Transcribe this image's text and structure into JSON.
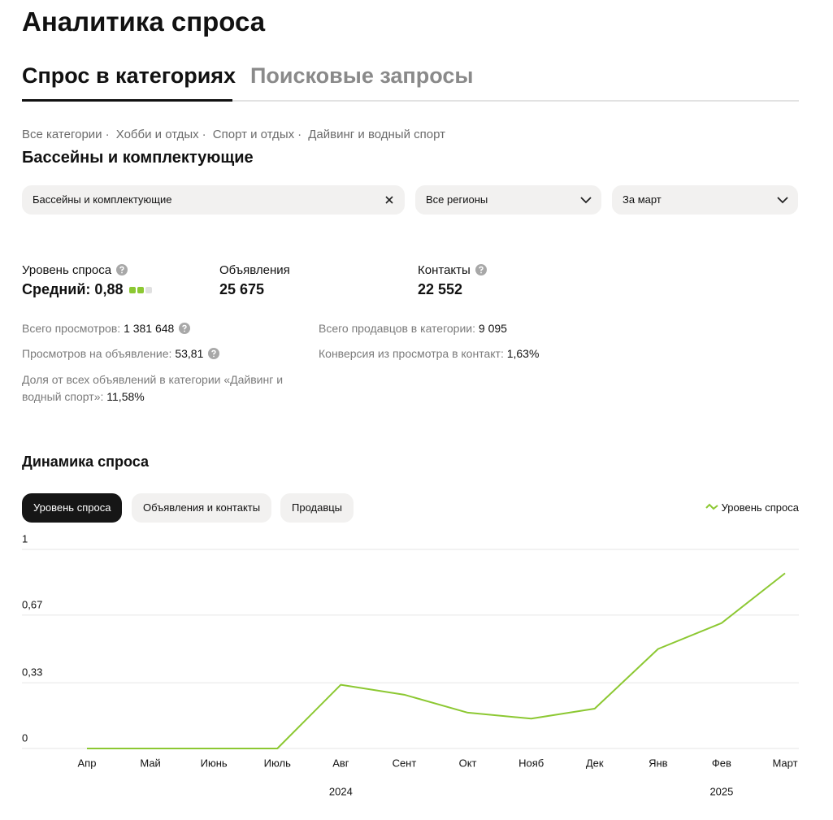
{
  "header": {
    "title": "Аналитика спроса"
  },
  "tabs": [
    {
      "label": "Спрос в категориях",
      "active": true
    },
    {
      "label": "Поисковые запросы",
      "active": false
    }
  ],
  "breadcrumbs": [
    "Все категории",
    "Хобби и отдых",
    "Спорт и отдых",
    "Дайвинг и водный спорт"
  ],
  "breadcrumb_separator": "·",
  "category_title": "Бассейны и комплектующие",
  "filters": [
    "Бассейны и комплектующие",
    "Все регионы",
    "За март"
  ],
  "metrics": [
    {
      "label": "Уровень спроса",
      "value": "Средний: 0,88"
    },
    {
      "label": "Объявления",
      "value": "25 675"
    },
    {
      "label": "Контакты",
      "value": "22 552"
    }
  ],
  "stats_left": [
    {
      "label": "Всего просмотров:",
      "value": "1 381 648"
    },
    {
      "label": "Просмотров на объявление:",
      "value": "53,81"
    },
    {
      "label": "Доля от всех объявлений в категории «Дайвинг и водный спорт»:",
      "value": "11,58%"
    }
  ],
  "stats_right": [
    {
      "label": "Всего продавцов в категории:",
      "value": "9 095"
    },
    {
      "label": "Конверсия из просмотра в контакт:",
      "value": "1,63%"
    }
  ],
  "section_title": "Динамика спроса",
  "chart_buttons": [
    {
      "label": "Уровень спроса",
      "active": true
    },
    {
      "label": "Объявления и контакты",
      "active": false
    },
    {
      "label": "Продавцы",
      "active": false
    }
  ],
  "chart_data": {
    "type": "line",
    "categories": [
      "Апр",
      "Май",
      "Июнь",
      "Июль",
      "Авг",
      "Сент",
      "Окт",
      "Нояб",
      "Дек",
      "Янв",
      "Фев",
      "Март"
    ],
    "years": [
      {
        "label": "2024",
        "month": "Авг"
      },
      {
        "label": "2025",
        "month": "Фев"
      }
    ],
    "series": [
      {
        "name": "Уровень спроса",
        "color": "#8cc832",
        "values": [
          0,
          0,
          0,
          0,
          0.32,
          0.27,
          0.18,
          0.15,
          0.2,
          0.5,
          0.63,
          0.88
        ]
      }
    ],
    "ylim": [
      0,
      1
    ],
    "yticks": [
      0,
      {
        "value": 0.33,
        "label": "0,33"
      },
      {
        "value": 0.67,
        "label": "0,67"
      },
      1
    ],
    "grid": true,
    "legend": "top-right"
  }
}
